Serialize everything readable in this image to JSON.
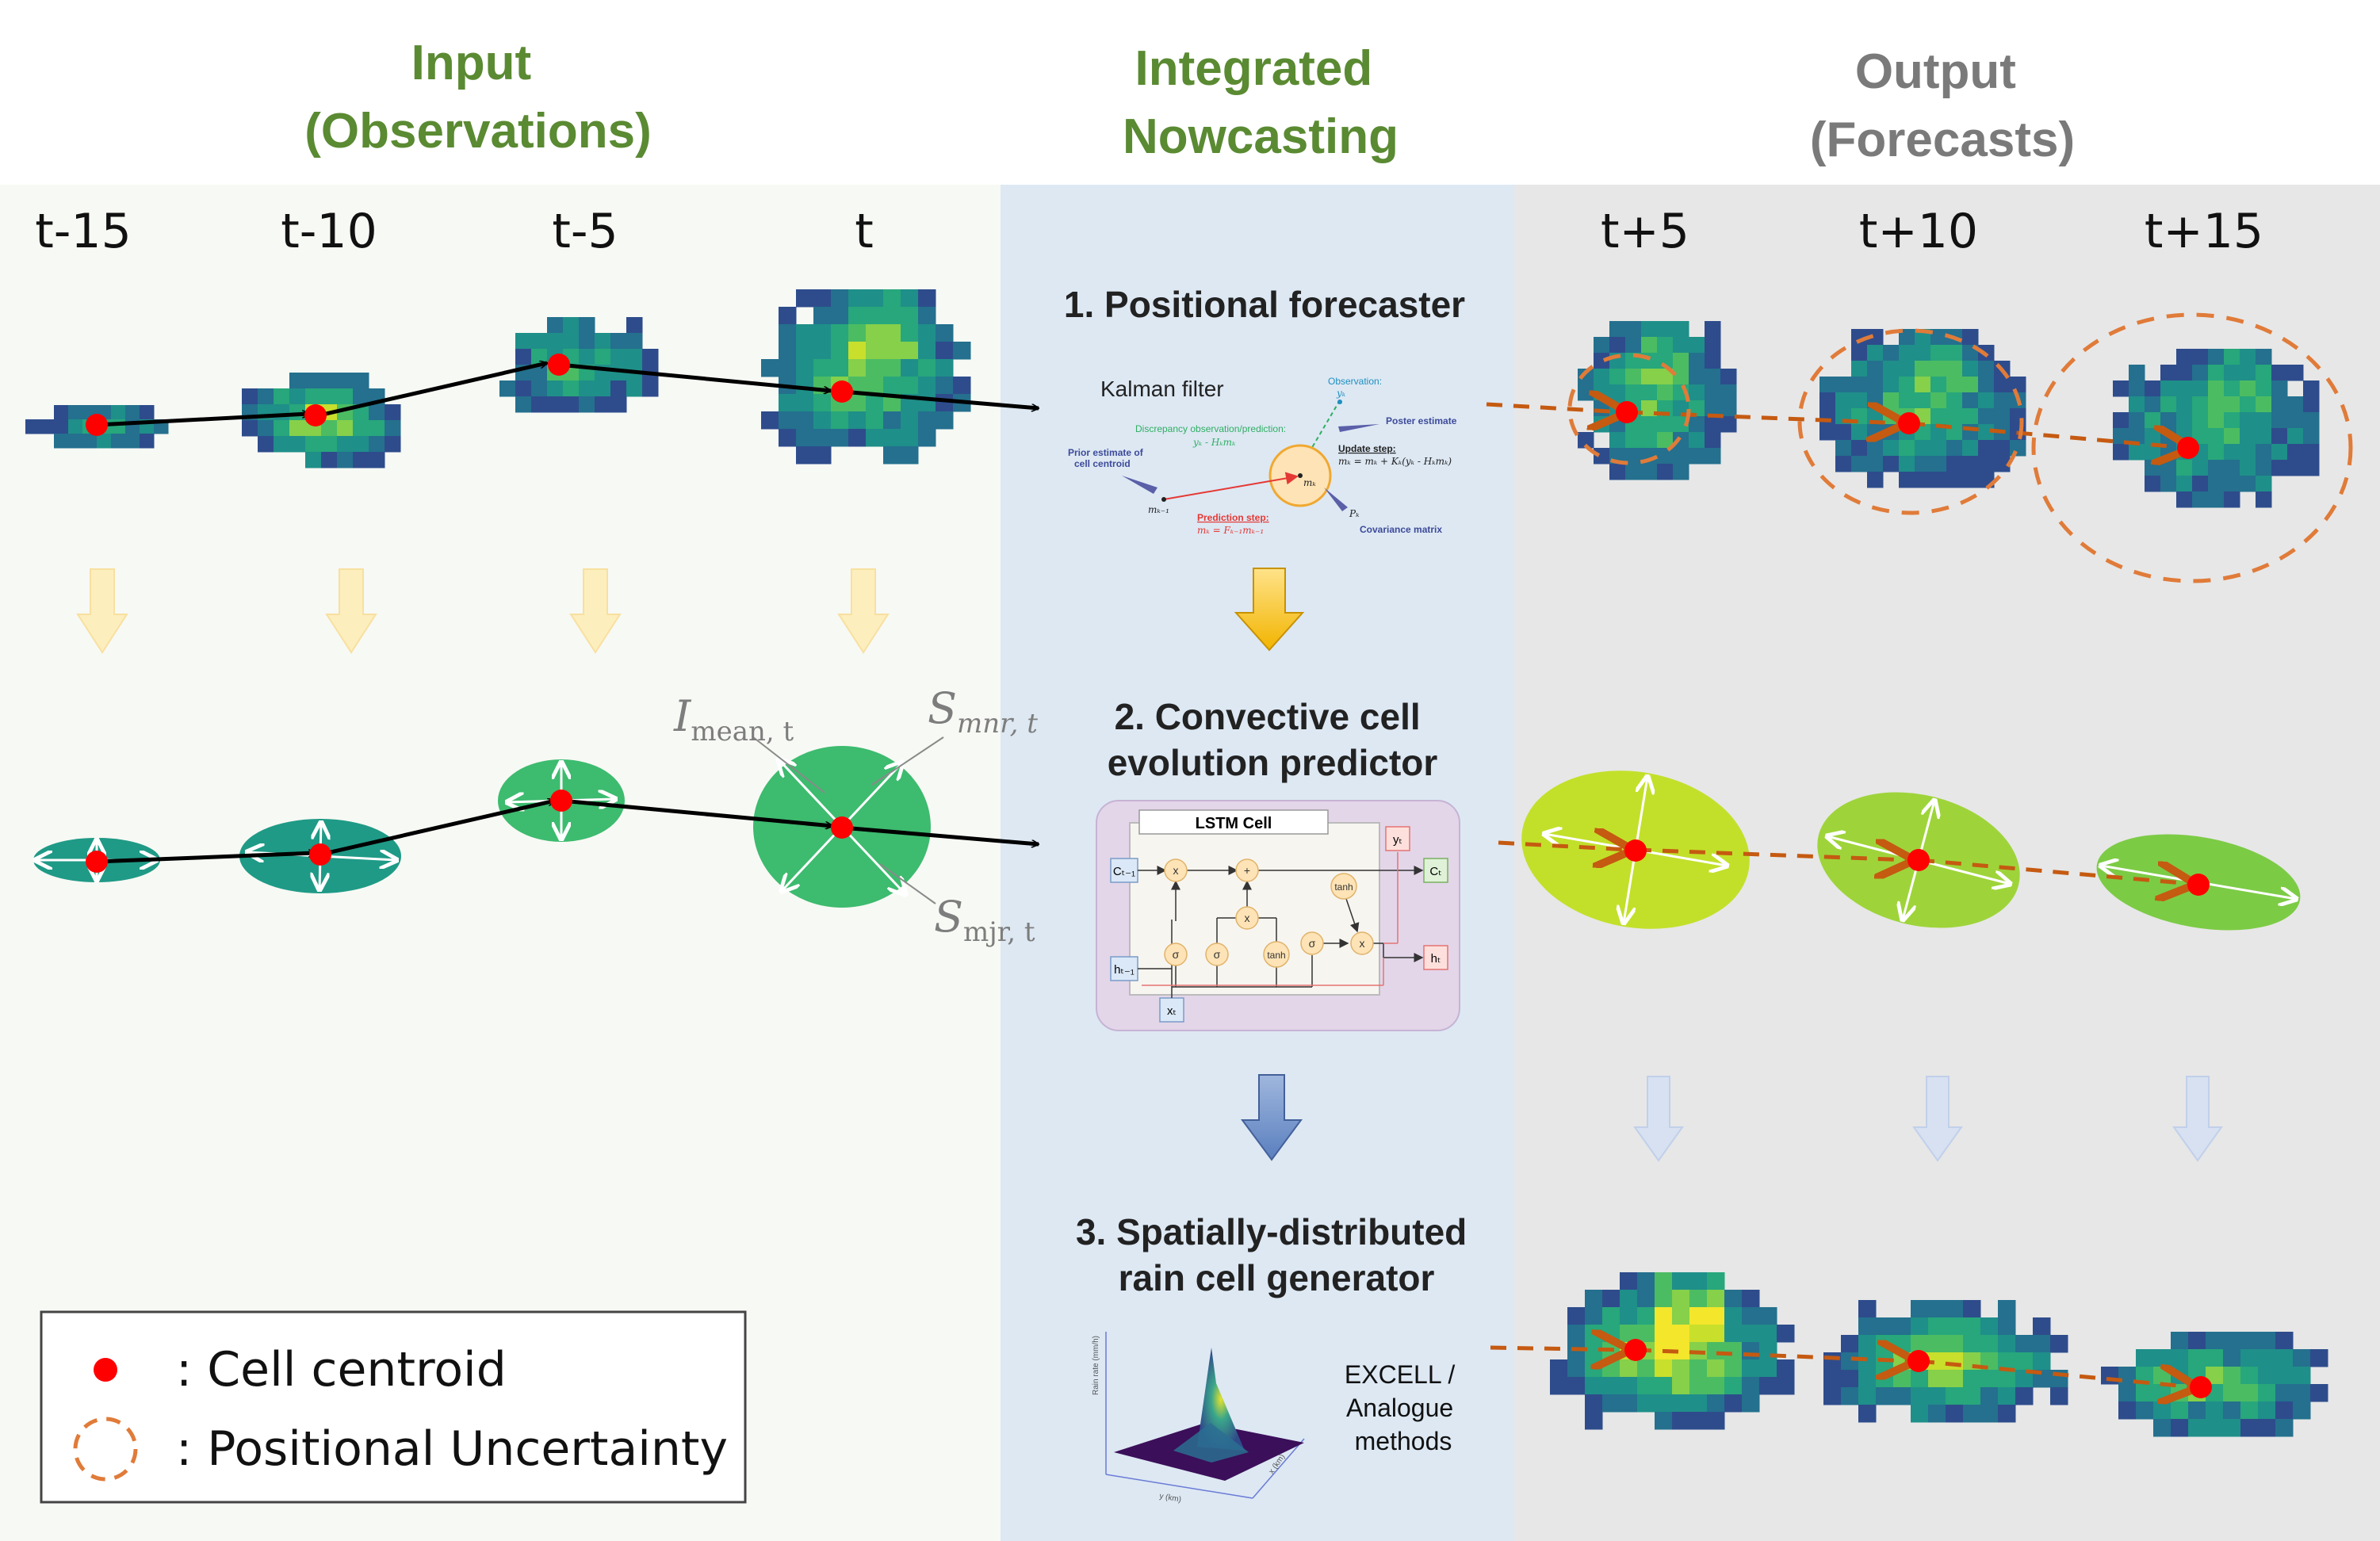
{
  "headers": {
    "input": [
      "Input",
      "(Observations)"
    ],
    "nowcasting": [
      "Integrated",
      "Nowcasting"
    ],
    "output": [
      "Output",
      "(Forecasts)"
    ]
  },
  "time_labels": {
    "input": [
      "t-15",
      "t-10",
      "t-5",
      "t"
    ],
    "output": [
      "t+5",
      "t+10",
      "t+15"
    ]
  },
  "steps": {
    "step1": "1. Positional forecaster",
    "step2": [
      "2. Convective cell",
      "evolution predictor"
    ],
    "step3": [
      "3. Spatially-distributed",
      "rain cell generator"
    ]
  },
  "kalman": {
    "title": "Kalman filter",
    "observation": "Observation:",
    "obs_sym": "yₖ",
    "poster": "Poster estimate",
    "discrepancy": "Discrepancy observation/prediction:",
    "discrepancy_eq": "yₖ - Hₖmₖ",
    "update": "Update step:",
    "update_eq": "mₖ = mₖ + Kₖ(yₖ - Hₖmₖ)",
    "prior": [
      "Prior estimate of",
      "cell centroid"
    ],
    "mprev": "mₖ₋₁",
    "mk": "mₖ",
    "prediction": "Prediction step:",
    "prediction_eq": "mₖ = Fₖ₋₁mₖ₋₁",
    "pk": "Pₖ",
    "covariance": "Covariance matrix"
  },
  "lstm": {
    "title": "LSTM Cell",
    "c_prev": "Cₜ₋₁",
    "h_prev": "hₜ₋₁",
    "x_t": "xₜ",
    "y_t": "yₜ",
    "c_t": "Cₜ",
    "h_t": "hₜ",
    "ops": [
      "x",
      "+",
      "tanh",
      "x",
      "σ",
      "σ",
      "tanh",
      "σ",
      "x"
    ]
  },
  "rainrate_plot": {
    "zlabel": "Rain rate (mm/h)",
    "ylabel": "y (km)",
    "xlabel": "x (km)",
    "method": [
      "EXCELL /",
      "Analogue",
      "methods"
    ]
  },
  "ellipse_labels": {
    "imean": "I",
    "imean_sub": "mean, t",
    "smnr": "S",
    "smnr_sub": "mnr, t",
    "smjr": "S",
    "smjr_sub": "mjr, t"
  },
  "legend": {
    "centroid": ": Cell centroid",
    "uncertainty": ": Positional Uncertainty"
  },
  "colors": {
    "input_bg": "#f7f9f4",
    "now_bg": "#dde8f3",
    "output_bg": "#e7e7e7",
    "centroid": "#ff0000",
    "forecast_arrow": "#c55a11",
    "uncertainty": "#e07b39",
    "obs_ellipse_dark": "#1f9a86",
    "obs_ellipse": "#3dbb6f",
    "fc_ellipse_1": "#c2e02a",
    "fc_ellipse_2": "#9ed43a",
    "fc_ellipse_3": "#7ccb45"
  }
}
